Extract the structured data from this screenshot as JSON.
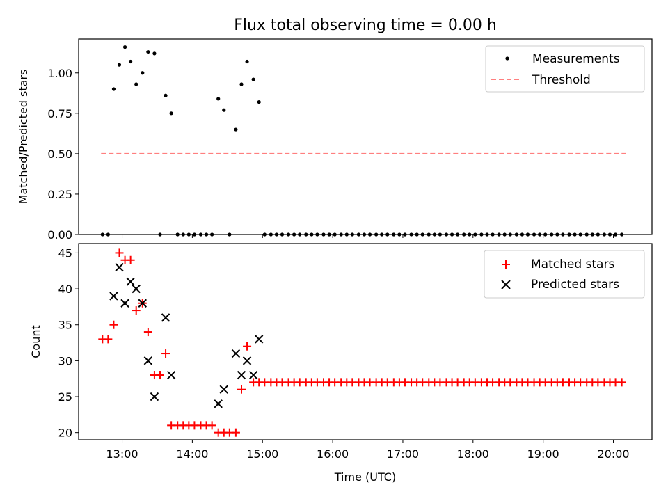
{
  "chart_data": [
    {
      "type": "scatter",
      "title": "Flux total observing time = 0.00 h",
      "xlabel": "",
      "ylabel": "Matched/Predicted stars",
      "xlim_hours": [
        12.38,
        20.55
      ],
      "ylim": [
        0.0,
        1.21
      ],
      "yticks": [
        "0.00",
        "0.25",
        "0.50",
        "0.75",
        "1.00"
      ],
      "ytick_values": [
        0.0,
        0.25,
        0.5,
        0.75,
        1.0
      ],
      "legend_position": "top-right",
      "series": [
        {
          "name": "Measurements",
          "color": "#000000",
          "marker": "dot",
          "points": [
            [
              12.72,
              0.0
            ],
            [
              12.8,
              0.0
            ],
            [
              12.88,
              0.9
            ],
            [
              12.96,
              1.05
            ],
            [
              13.04,
              1.16
            ],
            [
              13.12,
              1.07
            ],
            [
              13.2,
              0.93
            ],
            [
              13.29,
              1.0
            ],
            [
              13.37,
              1.13
            ],
            [
              13.46,
              1.12
            ],
            [
              13.54,
              0.0
            ],
            [
              13.62,
              0.86
            ],
            [
              13.7,
              0.75
            ],
            [
              13.79,
              0.0
            ],
            [
              13.87,
              0.0
            ],
            [
              13.95,
              0.0
            ],
            [
              14.03,
              0.0
            ],
            [
              14.12,
              0.0
            ],
            [
              14.2,
              0.0
            ],
            [
              14.28,
              0.0
            ],
            [
              14.37,
              0.84
            ],
            [
              14.45,
              0.77
            ],
            [
              14.53,
              0.0
            ],
            [
              14.62,
              0.65
            ],
            [
              14.7,
              0.93
            ],
            [
              14.78,
              1.07
            ],
            [
              14.87,
              0.96
            ],
            [
              14.95,
              0.82
            ],
            [
              15.03,
              0.0
            ],
            [
              15.12,
              0.0
            ],
            [
              15.2,
              0.0
            ],
            [
              15.28,
              0.0
            ],
            [
              15.37,
              0.0
            ],
            [
              15.45,
              0.0
            ],
            [
              15.53,
              0.0
            ],
            [
              15.62,
              0.0
            ],
            [
              15.7,
              0.0
            ],
            [
              15.78,
              0.0
            ],
            [
              15.87,
              0.0
            ],
            [
              15.95,
              0.0
            ],
            [
              16.03,
              0.0
            ],
            [
              16.12,
              0.0
            ],
            [
              16.2,
              0.0
            ],
            [
              16.28,
              0.0
            ],
            [
              16.37,
              0.0
            ],
            [
              16.45,
              0.0
            ],
            [
              16.53,
              0.0
            ],
            [
              16.62,
              0.0
            ],
            [
              16.7,
              0.0
            ],
            [
              16.78,
              0.0
            ],
            [
              16.87,
              0.0
            ],
            [
              16.95,
              0.0
            ],
            [
              17.03,
              0.0
            ],
            [
              17.12,
              0.0
            ],
            [
              17.2,
              0.0
            ],
            [
              17.28,
              0.0
            ],
            [
              17.37,
              0.0
            ],
            [
              17.45,
              0.0
            ],
            [
              17.53,
              0.0
            ],
            [
              17.62,
              0.0
            ],
            [
              17.7,
              0.0
            ],
            [
              17.78,
              0.0
            ],
            [
              17.87,
              0.0
            ],
            [
              17.95,
              0.0
            ],
            [
              18.03,
              0.0
            ],
            [
              18.12,
              0.0
            ],
            [
              18.2,
              0.0
            ],
            [
              18.28,
              0.0
            ],
            [
              18.37,
              0.0
            ],
            [
              18.45,
              0.0
            ],
            [
              18.53,
              0.0
            ],
            [
              18.62,
              0.0
            ],
            [
              18.7,
              0.0
            ],
            [
              18.78,
              0.0
            ],
            [
              18.87,
              0.0
            ],
            [
              18.95,
              0.0
            ],
            [
              19.03,
              0.0
            ],
            [
              19.12,
              0.0
            ],
            [
              19.2,
              0.0
            ],
            [
              19.28,
              0.0
            ],
            [
              19.37,
              0.0
            ],
            [
              19.45,
              0.0
            ],
            [
              19.53,
              0.0
            ],
            [
              19.62,
              0.0
            ],
            [
              19.7,
              0.0
            ],
            [
              19.78,
              0.0
            ],
            [
              19.87,
              0.0
            ],
            [
              19.95,
              0.0
            ],
            [
              20.03,
              0.0
            ],
            [
              20.12,
              0.0
            ]
          ]
        },
        {
          "name": "Threshold",
          "color": "#ff7f7f",
          "style": "dashed-line",
          "points": [
            [
              12.7,
              0.5
            ],
            [
              20.18,
              0.5
            ]
          ]
        }
      ]
    },
    {
      "type": "scatter",
      "title": "",
      "xlabel": "Time (UTC)",
      "ylabel": "Count",
      "xlim_hours": [
        12.38,
        20.55
      ],
      "ylim": [
        19.0,
        46.3
      ],
      "yticks": [
        "20",
        "25",
        "30",
        "35",
        "40",
        "45"
      ],
      "ytick_values": [
        20,
        25,
        30,
        35,
        40,
        45
      ],
      "xticks": [
        "13:00",
        "14:00",
        "15:00",
        "16:00",
        "17:00",
        "18:00",
        "19:00",
        "20:00"
      ],
      "xtick_values": [
        13,
        14,
        15,
        16,
        17,
        18,
        19,
        20
      ],
      "legend_position": "top-right",
      "series": [
        {
          "name": "Matched stars",
          "color": "#ff0000",
          "marker": "plus",
          "points": [
            [
              12.72,
              33
            ],
            [
              12.8,
              33
            ],
            [
              12.88,
              35
            ],
            [
              12.96,
              45
            ],
            [
              13.04,
              44
            ],
            [
              13.12,
              44
            ],
            [
              13.2,
              37
            ],
            [
              13.29,
              38
            ],
            [
              13.37,
              34
            ],
            [
              13.46,
              28
            ],
            [
              13.54,
              28
            ],
            [
              13.62,
              31
            ],
            [
              13.7,
              21
            ],
            [
              13.79,
              21
            ],
            [
              13.87,
              21
            ],
            [
              13.95,
              21
            ],
            [
              14.03,
              21
            ],
            [
              14.12,
              21
            ],
            [
              14.2,
              21
            ],
            [
              14.28,
              21
            ],
            [
              14.37,
              20
            ],
            [
              14.45,
              20
            ],
            [
              14.53,
              20
            ],
            [
              14.62,
              20
            ],
            [
              14.7,
              26
            ],
            [
              14.78,
              32
            ],
            [
              14.87,
              27
            ],
            [
              14.95,
              27
            ],
            [
              15.03,
              27
            ],
            [
              15.12,
              27
            ],
            [
              15.2,
              27
            ],
            [
              15.28,
              27
            ],
            [
              15.37,
              27
            ],
            [
              15.45,
              27
            ],
            [
              15.53,
              27
            ],
            [
              15.62,
              27
            ],
            [
              15.7,
              27
            ],
            [
              15.78,
              27
            ],
            [
              15.87,
              27
            ],
            [
              15.95,
              27
            ],
            [
              16.03,
              27
            ],
            [
              16.12,
              27
            ],
            [
              16.2,
              27
            ],
            [
              16.28,
              27
            ],
            [
              16.37,
              27
            ],
            [
              16.45,
              27
            ],
            [
              16.53,
              27
            ],
            [
              16.62,
              27
            ],
            [
              16.7,
              27
            ],
            [
              16.78,
              27
            ],
            [
              16.87,
              27
            ],
            [
              16.95,
              27
            ],
            [
              17.03,
              27
            ],
            [
              17.12,
              27
            ],
            [
              17.2,
              27
            ],
            [
              17.28,
              27
            ],
            [
              17.37,
              27
            ],
            [
              17.45,
              27
            ],
            [
              17.53,
              27
            ],
            [
              17.62,
              27
            ],
            [
              17.7,
              27
            ],
            [
              17.78,
              27
            ],
            [
              17.87,
              27
            ],
            [
              17.95,
              27
            ],
            [
              18.03,
              27
            ],
            [
              18.12,
              27
            ],
            [
              18.2,
              27
            ],
            [
              18.28,
              27
            ],
            [
              18.37,
              27
            ],
            [
              18.45,
              27
            ],
            [
              18.53,
              27
            ],
            [
              18.62,
              27
            ],
            [
              18.7,
              27
            ],
            [
              18.78,
              27
            ],
            [
              18.87,
              27
            ],
            [
              18.95,
              27
            ],
            [
              19.03,
              27
            ],
            [
              19.12,
              27
            ],
            [
              19.2,
              27
            ],
            [
              19.28,
              27
            ],
            [
              19.37,
              27
            ],
            [
              19.45,
              27
            ],
            [
              19.53,
              27
            ],
            [
              19.62,
              27
            ],
            [
              19.7,
              27
            ],
            [
              19.78,
              27
            ],
            [
              19.87,
              27
            ],
            [
              19.95,
              27
            ],
            [
              20.03,
              27
            ],
            [
              20.12,
              27
            ]
          ]
        },
        {
          "name": "Predicted stars",
          "color": "#000000",
          "marker": "x",
          "points": [
            [
              12.88,
              39
            ],
            [
              12.96,
              43
            ],
            [
              13.04,
              38
            ],
            [
              13.12,
              41
            ],
            [
              13.2,
              40
            ],
            [
              13.29,
              38
            ],
            [
              13.37,
              30
            ],
            [
              13.46,
              25
            ],
            [
              13.62,
              36
            ],
            [
              13.7,
              28
            ],
            [
              14.37,
              24
            ],
            [
              14.45,
              26
            ],
            [
              14.62,
              31
            ],
            [
              14.7,
              28
            ],
            [
              14.78,
              30
            ],
            [
              14.87,
              28
            ],
            [
              14.95,
              33
            ]
          ]
        }
      ]
    }
  ]
}
